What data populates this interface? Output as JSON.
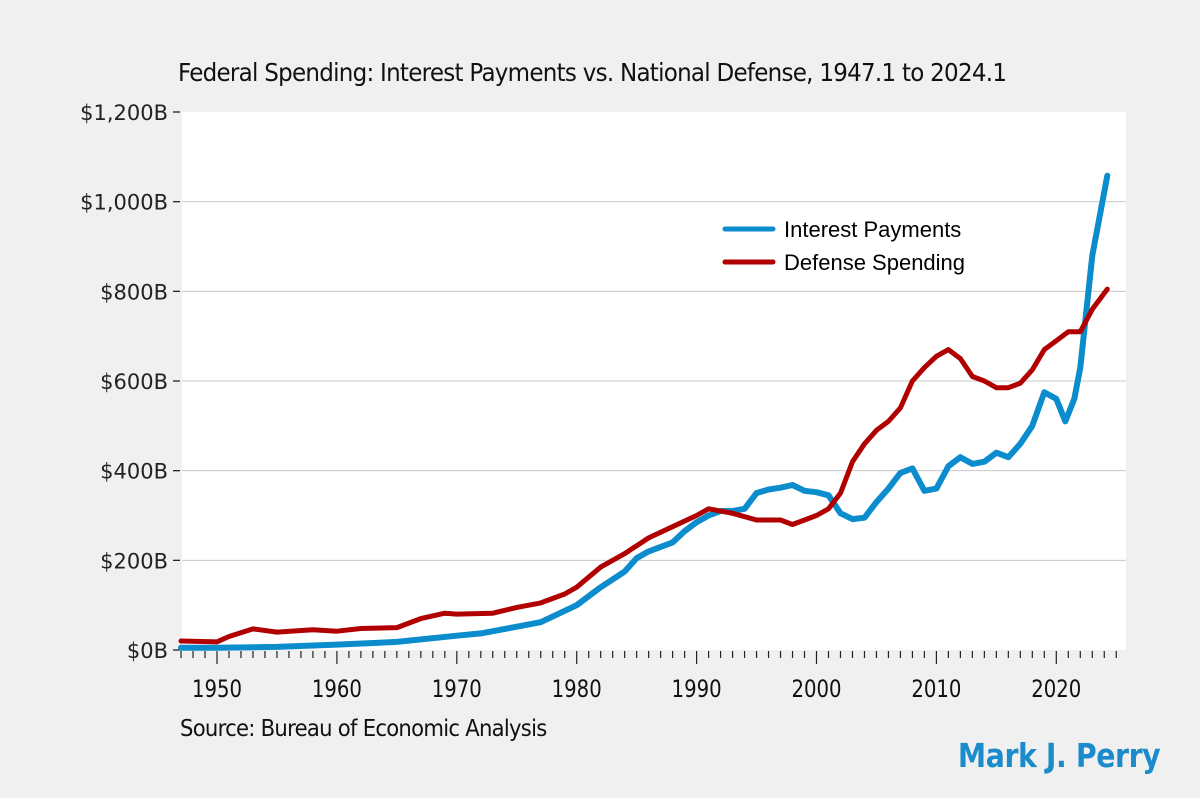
{
  "chart_data": {
    "type": "line",
    "title": "Federal Spending: Interest Payments vs. National Defense, 1947.1 to 2024.1",
    "xlabel": "",
    "ylabel": "",
    "xlim": [
      1947,
      2026
    ],
    "ylim": [
      0,
      1200
    ],
    "grid": true,
    "legend_position": "top-right",
    "y_ticks": [
      {
        "value": 0,
        "label": "$0B"
      },
      {
        "value": 200,
        "label": "$200B"
      },
      {
        "value": 400,
        "label": "$400B"
      },
      {
        "value": 600,
        "label": "$600B"
      },
      {
        "value": 800,
        "label": "$800B"
      },
      {
        "value": 1000,
        "label": "$1,000B"
      },
      {
        "value": 1200,
        "label": "$1,200B"
      }
    ],
    "x_ticks": [
      {
        "value": 1950,
        "label": "1950"
      },
      {
        "value": 1960,
        "label": "1960"
      },
      {
        "value": 1970,
        "label": "1970"
      },
      {
        "value": 1980,
        "label": "1980"
      },
      {
        "value": 1990,
        "label": "1990"
      },
      {
        "value": 2000,
        "label": "2000"
      },
      {
        "value": 2010,
        "label": "2010"
      },
      {
        "value": 2020,
        "label": "2020"
      }
    ],
    "series": [
      {
        "name": "Interest Payments",
        "color": "#0a8ccd",
        "points": [
          [
            1947,
            5
          ],
          [
            1950,
            5
          ],
          [
            1955,
            7
          ],
          [
            1960,
            12
          ],
          [
            1965,
            18
          ],
          [
            1970,
            32
          ],
          [
            1972,
            37
          ],
          [
            1975,
            52
          ],
          [
            1977,
            62
          ],
          [
            1980,
            100
          ],
          [
            1982,
            140
          ],
          [
            1984,
            175
          ],
          [
            1985,
            205
          ],
          [
            1986,
            220
          ],
          [
            1988,
            240
          ],
          [
            1989,
            265
          ],
          [
            1990,
            285
          ],
          [
            1991,
            300
          ],
          [
            1992,
            310
          ],
          [
            1993,
            310
          ],
          [
            1994,
            315
          ],
          [
            1995,
            350
          ],
          [
            1996,
            358
          ],
          [
            1997,
            362
          ],
          [
            1998,
            368
          ],
          [
            1999,
            355
          ],
          [
            2000,
            352
          ],
          [
            2001,
            345
          ],
          [
            2002,
            305
          ],
          [
            2003,
            292
          ],
          [
            2004,
            295
          ],
          [
            2005,
            330
          ],
          [
            2006,
            360
          ],
          [
            2007,
            395
          ],
          [
            2008,
            405
          ],
          [
            2009,
            355
          ],
          [
            2010,
            360
          ],
          [
            2011,
            410
          ],
          [
            2012,
            430
          ],
          [
            2013,
            415
          ],
          [
            2014,
            420
          ],
          [
            2015,
            440
          ],
          [
            2016,
            430
          ],
          [
            2017,
            460
          ],
          [
            2018,
            500
          ],
          [
            2019,
            575
          ],
          [
            2020,
            560
          ],
          [
            2020.75,
            510
          ],
          [
            2021.5,
            560
          ],
          [
            2022,
            630
          ],
          [
            2023,
            880
          ],
          [
            2024.25,
            1058
          ]
        ]
      },
      {
        "name": "Defense Spending",
        "color": "#b00000",
        "points": [
          [
            1947,
            20
          ],
          [
            1950,
            18
          ],
          [
            1951,
            30
          ],
          [
            1953,
            47
          ],
          [
            1955,
            40
          ],
          [
            1958,
            45
          ],
          [
            1960,
            42
          ],
          [
            1962,
            48
          ],
          [
            1965,
            50
          ],
          [
            1967,
            70
          ],
          [
            1969,
            82
          ],
          [
            1970,
            80
          ],
          [
            1973,
            82
          ],
          [
            1975,
            95
          ],
          [
            1977,
            105
          ],
          [
            1979,
            125
          ],
          [
            1980,
            140
          ],
          [
            1982,
            185
          ],
          [
            1984,
            215
          ],
          [
            1986,
            250
          ],
          [
            1988,
            275
          ],
          [
            1990,
            300
          ],
          [
            1991,
            315
          ],
          [
            1993,
            305
          ],
          [
            1995,
            290
          ],
          [
            1997,
            290
          ],
          [
            1998,
            280
          ],
          [
            2000,
            300
          ],
          [
            2001,
            315
          ],
          [
            2002,
            350
          ],
          [
            2003,
            420
          ],
          [
            2004,
            460
          ],
          [
            2005,
            490
          ],
          [
            2006,
            510
          ],
          [
            2007,
            540
          ],
          [
            2008,
            600
          ],
          [
            2009,
            630
          ],
          [
            2010,
            655
          ],
          [
            2011,
            670
          ],
          [
            2012,
            650
          ],
          [
            2013,
            610
          ],
          [
            2014,
            600
          ],
          [
            2015,
            585
          ],
          [
            2016,
            585
          ],
          [
            2017,
            595
          ],
          [
            2018,
            625
          ],
          [
            2019,
            670
          ],
          [
            2020,
            690
          ],
          [
            2021,
            710
          ],
          [
            2022,
            710
          ],
          [
            2023,
            760
          ],
          [
            2024.25,
            805
          ]
        ]
      }
    ],
    "source": "Source: Bureau of Economic Analysis",
    "author": "Mark J. Perry",
    "author_color": "#1a8ccb"
  }
}
